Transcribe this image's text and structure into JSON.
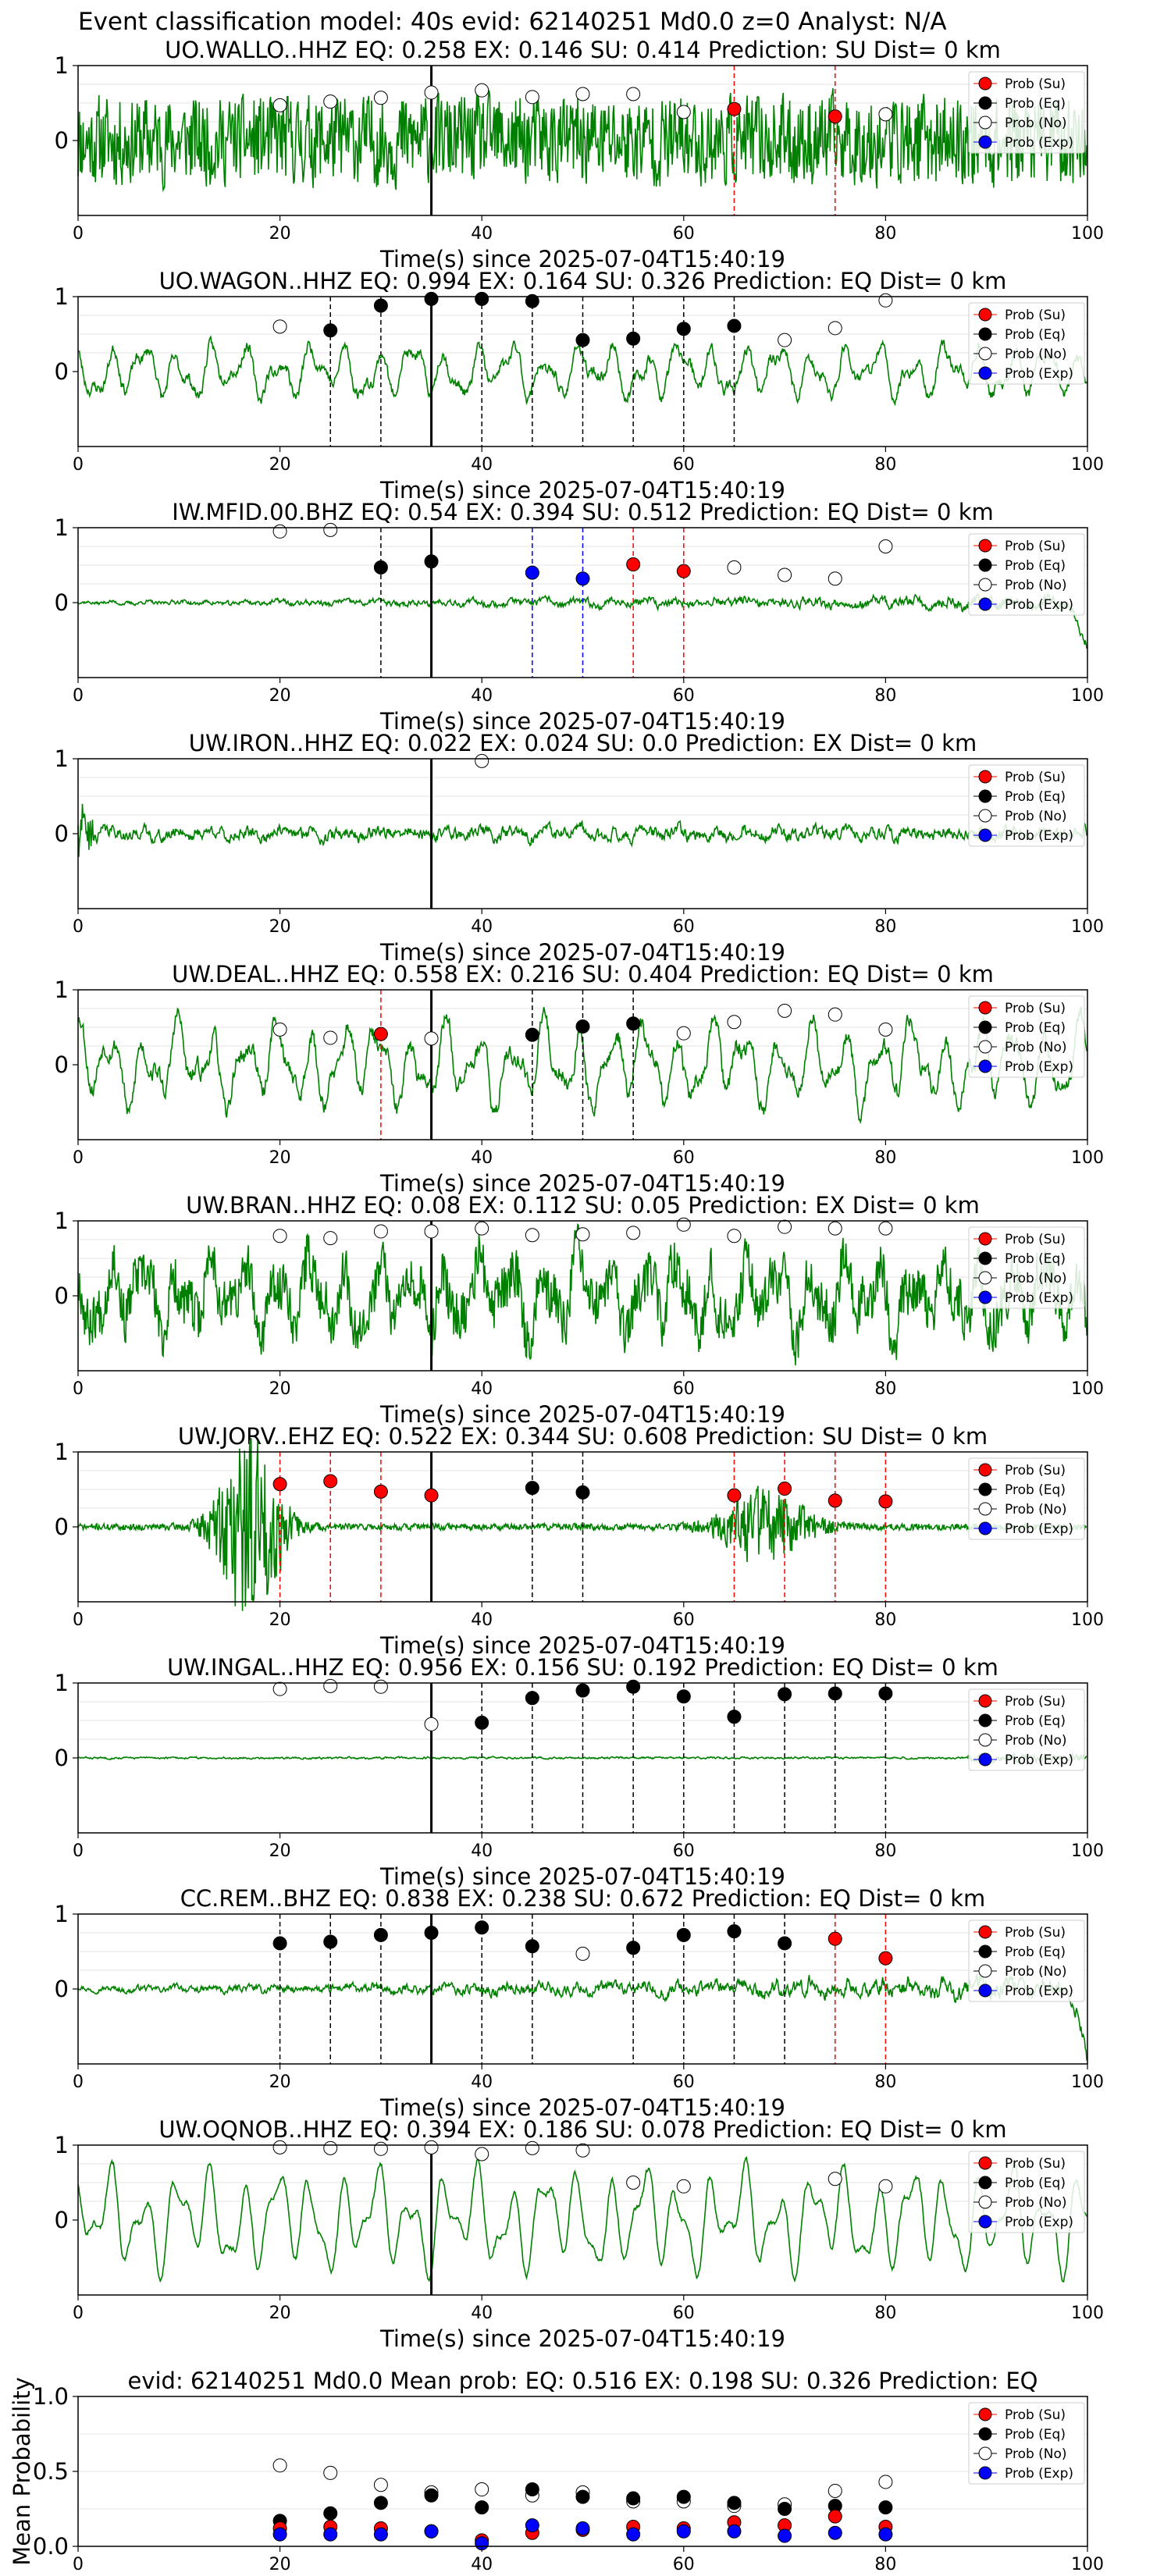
{
  "figure": {
    "title": "Event classification model: 40s evid: 62140251 Md0.0 z=0 Analyst: N/A"
  },
  "legend": {
    "position": "top-right",
    "entries": [
      {
        "key": "su",
        "label": "Prob (Su)",
        "color": "#ff0000"
      },
      {
        "key": "eq",
        "label": "Prob (Eq)",
        "color": "#000000"
      },
      {
        "key": "no",
        "label": "Prob (No)",
        "color": "#ffffff"
      },
      {
        "key": "exp",
        "label": "Prob (Exp)",
        "color": "#0000ff"
      }
    ]
  },
  "colors": {
    "waveform": "#008000",
    "su": "#ff0000",
    "eq": "#000000",
    "no": "#ffffff",
    "exp": "#0000ff",
    "origin_line": "#000000"
  },
  "chart_data": [
    {
      "type": "line",
      "station": "UO.WALLO..HHZ",
      "title": "UO.WALLO..HHZ   EQ: 0.258  EX: 0.146  SU: 0.414   Prediction: SU    Dist= 0 km",
      "xlabel": "Time(s) since 2025-07-04T15:40:19",
      "xlim": [
        0,
        100
      ],
      "ylim": [
        -1,
        1
      ],
      "xticks": [
        0,
        20,
        40,
        60,
        80,
        100
      ],
      "yticks": [
        0,
        1
      ],
      "waveform": {
        "amp": 0.6,
        "style": "noisy",
        "seed": 11
      },
      "origin_x": 35,
      "points": [
        {
          "x": 20,
          "y": 0.47,
          "cls": "no"
        },
        {
          "x": 25,
          "y": 0.52,
          "cls": "no"
        },
        {
          "x": 30,
          "y": 0.57,
          "cls": "no"
        },
        {
          "x": 35,
          "y": 0.64,
          "cls": "no"
        },
        {
          "x": 40,
          "y": 0.67,
          "cls": "no"
        },
        {
          "x": 45,
          "y": 0.58,
          "cls": "no"
        },
        {
          "x": 50,
          "y": 0.62,
          "cls": "no"
        },
        {
          "x": 55,
          "y": 0.62,
          "cls": "no"
        },
        {
          "x": 60,
          "y": 0.38,
          "cls": "no"
        },
        {
          "x": 65,
          "y": 0.42,
          "cls": "su"
        },
        {
          "x": 75,
          "y": 0.32,
          "cls": "su"
        },
        {
          "x": 80,
          "y": 0.35,
          "cls": "no"
        }
      ]
    },
    {
      "type": "line",
      "station": "UO.WAGON..HHZ",
      "title": "UO.WAGON..HHZ   EQ: 0.994  EX: 0.164  SU: 0.326   Prediction: EQ    Dist= 0 km",
      "xlabel": "Time(s) since 2025-07-04T15:40:19",
      "xlim": [
        0,
        100
      ],
      "ylim": [
        -1,
        1
      ],
      "xticks": [
        0,
        20,
        40,
        60,
        80,
        100
      ],
      "yticks": [
        0,
        1
      ],
      "waveform": {
        "amp": 0.45,
        "style": "smooth",
        "seed": 23
      },
      "origin_x": 35,
      "points": [
        {
          "x": 20,
          "y": 0.6,
          "cls": "no"
        },
        {
          "x": 25,
          "y": 0.55,
          "cls": "eq"
        },
        {
          "x": 30,
          "y": 0.88,
          "cls": "eq"
        },
        {
          "x": 35,
          "y": 0.97,
          "cls": "eq"
        },
        {
          "x": 40,
          "y": 0.97,
          "cls": "eq"
        },
        {
          "x": 45,
          "y": 0.94,
          "cls": "eq"
        },
        {
          "x": 50,
          "y": 0.42,
          "cls": "eq"
        },
        {
          "x": 55,
          "y": 0.44,
          "cls": "eq"
        },
        {
          "x": 60,
          "y": 0.57,
          "cls": "eq"
        },
        {
          "x": 65,
          "y": 0.61,
          "cls": "eq"
        },
        {
          "x": 70,
          "y": 0.42,
          "cls": "no"
        },
        {
          "x": 75,
          "y": 0.58,
          "cls": "no"
        },
        {
          "x": 80,
          "y": 0.95,
          "cls": "no"
        }
      ]
    },
    {
      "type": "line",
      "station": "IW.MFID.00.BHZ",
      "title": "IW.MFID.00.BHZ   EQ: 0.54  EX: 0.394  SU: 0.512   Prediction: EQ    Dist= 0 km",
      "xlabel": "Time(s) since 2025-07-04T15:40:19",
      "xlim": [
        0,
        100
      ],
      "ylim": [
        -1,
        1
      ],
      "xticks": [
        0,
        20,
        40,
        60,
        80,
        100
      ],
      "yticks": [
        0,
        1
      ],
      "waveform": {
        "amp": 0.12,
        "style": "growing",
        "seed": 37
      },
      "origin_x": 35,
      "points": [
        {
          "x": 20,
          "y": 0.95,
          "cls": "no"
        },
        {
          "x": 25,
          "y": 0.97,
          "cls": "no"
        },
        {
          "x": 30,
          "y": 0.47,
          "cls": "eq"
        },
        {
          "x": 35,
          "y": 0.55,
          "cls": "eq"
        },
        {
          "x": 45,
          "y": 0.4,
          "cls": "exp"
        },
        {
          "x": 50,
          "y": 0.32,
          "cls": "exp"
        },
        {
          "x": 55,
          "y": 0.51,
          "cls": "su"
        },
        {
          "x": 60,
          "y": 0.42,
          "cls": "su"
        },
        {
          "x": 65,
          "y": 0.47,
          "cls": "no"
        },
        {
          "x": 70,
          "y": 0.37,
          "cls": "no"
        },
        {
          "x": 75,
          "y": 0.32,
          "cls": "no"
        },
        {
          "x": 80,
          "y": 0.75,
          "cls": "no"
        }
      ]
    },
    {
      "type": "line",
      "station": "UW.IRON..HHZ",
      "title": "UW.IRON..HHZ   EQ: 0.022  EX: 0.024  SU: 0.0   Prediction: EX    Dist= 0 km",
      "xlabel": "Time(s) since 2025-07-04T15:40:19",
      "xlim": [
        0,
        100
      ],
      "ylim": [
        -1,
        1
      ],
      "xticks": [
        0,
        20,
        40,
        60,
        80,
        100
      ],
      "yticks": [
        0,
        1
      ],
      "waveform": {
        "amp": 0.2,
        "style": "noisy-low",
        "seed": 41
      },
      "origin_x": 35,
      "points": [
        {
          "x": 40,
          "y": 0.97,
          "cls": "no"
        }
      ]
    },
    {
      "type": "line",
      "station": "UW.DEAL..HHZ",
      "title": "UW.DEAL..HHZ   EQ: 0.558  EX: 0.216  SU: 0.404   Prediction: EQ    Dist= 0 km",
      "xlabel": "Time(s) since 2025-07-04T15:40:19",
      "xlim": [
        0,
        100
      ],
      "ylim": [
        -1,
        1
      ],
      "xticks": [
        0,
        20,
        40,
        60,
        80,
        100
      ],
      "yticks": [
        0,
        1
      ],
      "waveform": {
        "amp": 0.7,
        "style": "smooth",
        "seed": 53
      },
      "origin_x": 35,
      "points": [
        {
          "x": 20,
          "y": 0.47,
          "cls": "no"
        },
        {
          "x": 25,
          "y": 0.36,
          "cls": "no"
        },
        {
          "x": 30,
          "y": 0.41,
          "cls": "su"
        },
        {
          "x": 35,
          "y": 0.35,
          "cls": "no"
        },
        {
          "x": 45,
          "y": 0.4,
          "cls": "eq"
        },
        {
          "x": 50,
          "y": 0.51,
          "cls": "eq"
        },
        {
          "x": 55,
          "y": 0.55,
          "cls": "eq"
        },
        {
          "x": 60,
          "y": 0.42,
          "cls": "no"
        },
        {
          "x": 65,
          "y": 0.57,
          "cls": "no"
        },
        {
          "x": 70,
          "y": 0.72,
          "cls": "no"
        },
        {
          "x": 75,
          "y": 0.67,
          "cls": "no"
        },
        {
          "x": 80,
          "y": 0.47,
          "cls": "no"
        }
      ]
    },
    {
      "type": "line",
      "station": "UW.BRAN..HHZ",
      "title": "UW.BRAN..HHZ   EQ: 0.08  EX: 0.112  SU: 0.05   Prediction: EX    Dist= 0 km",
      "xlabel": "Time(s) since 2025-07-04T15:40:19",
      "xlim": [
        0,
        100
      ],
      "ylim": [
        -1,
        1
      ],
      "xticks": [
        0,
        20,
        40,
        60,
        80,
        100
      ],
      "yticks": [
        0,
        1
      ],
      "waveform": {
        "amp": 0.7,
        "style": "smooth-noisy",
        "seed": 67
      },
      "origin_x": 35,
      "points": [
        {
          "x": 20,
          "y": 0.8,
          "cls": "no"
        },
        {
          "x": 25,
          "y": 0.77,
          "cls": "no"
        },
        {
          "x": 30,
          "y": 0.86,
          "cls": "no"
        },
        {
          "x": 35,
          "y": 0.86,
          "cls": "no"
        },
        {
          "x": 40,
          "y": 0.9,
          "cls": "no"
        },
        {
          "x": 45,
          "y": 0.81,
          "cls": "no"
        },
        {
          "x": 50,
          "y": 0.82,
          "cls": "no"
        },
        {
          "x": 55,
          "y": 0.84,
          "cls": "no"
        },
        {
          "x": 60,
          "y": 0.95,
          "cls": "no"
        },
        {
          "x": 65,
          "y": 0.8,
          "cls": "no"
        },
        {
          "x": 70,
          "y": 0.92,
          "cls": "no"
        },
        {
          "x": 75,
          "y": 0.9,
          "cls": "no"
        },
        {
          "x": 80,
          "y": 0.9,
          "cls": "no"
        }
      ]
    },
    {
      "type": "line",
      "station": "UW.JORV..EHZ",
      "title": "UW.JORV..EHZ   EQ: 0.522  EX: 0.344  SU: 0.608   Prediction: SU    Dist= 0 km",
      "xlabel": "Time(s) since 2025-07-04T15:40:19",
      "xlim": [
        0,
        100
      ],
      "ylim": [
        -1,
        1
      ],
      "xticks": [
        0,
        20,
        40,
        60,
        80,
        100
      ],
      "yticks": [
        0,
        1
      ],
      "waveform": {
        "amp": 0.9,
        "style": "bursts",
        "seed": 71
      },
      "origin_x": 35,
      "points": [
        {
          "x": 20,
          "y": 0.57,
          "cls": "su"
        },
        {
          "x": 25,
          "y": 0.61,
          "cls": "su"
        },
        {
          "x": 30,
          "y": 0.47,
          "cls": "su"
        },
        {
          "x": 35,
          "y": 0.42,
          "cls": "su"
        },
        {
          "x": 45,
          "y": 0.52,
          "cls": "eq"
        },
        {
          "x": 50,
          "y": 0.46,
          "cls": "eq"
        },
        {
          "x": 65,
          "y": 0.42,
          "cls": "su"
        },
        {
          "x": 70,
          "y": 0.51,
          "cls": "su"
        },
        {
          "x": 75,
          "y": 0.35,
          "cls": "su"
        },
        {
          "x": 80,
          "y": 0.34,
          "cls": "su"
        }
      ]
    },
    {
      "type": "line",
      "station": "UW.INGAL..HHZ",
      "title": "UW.INGAL..HHZ   EQ: 0.956  EX: 0.156  SU: 0.192   Prediction: EQ    Dist= 0 km",
      "xlabel": "Time(s) since 2025-07-04T15:40:19",
      "xlim": [
        0,
        100
      ],
      "ylim": [
        -1,
        1
      ],
      "xticks": [
        0,
        20,
        40,
        60,
        80,
        100
      ],
      "yticks": [
        0,
        1
      ],
      "waveform": {
        "amp": 0.05,
        "style": "quiet-late",
        "seed": 83
      },
      "origin_x": 35,
      "points": [
        {
          "x": 20,
          "y": 0.92,
          "cls": "no"
        },
        {
          "x": 25,
          "y": 0.96,
          "cls": "no"
        },
        {
          "x": 30,
          "y": 0.95,
          "cls": "no"
        },
        {
          "x": 35,
          "y": 0.45,
          "cls": "no"
        },
        {
          "x": 40,
          "y": 0.47,
          "cls": "eq"
        },
        {
          "x": 45,
          "y": 0.8,
          "cls": "eq"
        },
        {
          "x": 50,
          "y": 0.9,
          "cls": "eq"
        },
        {
          "x": 55,
          "y": 0.95,
          "cls": "eq"
        },
        {
          "x": 60,
          "y": 0.82,
          "cls": "eq"
        },
        {
          "x": 65,
          "y": 0.55,
          "cls": "eq"
        },
        {
          "x": 70,
          "y": 0.85,
          "cls": "eq"
        },
        {
          "x": 75,
          "y": 0.86,
          "cls": "eq"
        },
        {
          "x": 80,
          "y": 0.86,
          "cls": "eq"
        }
      ]
    },
    {
      "type": "line",
      "station": "CC.REM..BHZ",
      "title": "CC.REM..BHZ   EQ: 0.838  EX: 0.238  SU: 0.672   Prediction: EQ    Dist= 0 km",
      "xlabel": "Time(s) since 2025-07-04T15:40:19",
      "xlim": [
        0,
        100
      ],
      "ylim": [
        -1,
        1
      ],
      "xticks": [
        0,
        20,
        40,
        60,
        80,
        100
      ],
      "yticks": [
        0,
        1
      ],
      "waveform": {
        "amp": 0.18,
        "style": "growing",
        "seed": 97
      },
      "origin_x": 35,
      "points": [
        {
          "x": 20,
          "y": 0.61,
          "cls": "eq"
        },
        {
          "x": 25,
          "y": 0.63,
          "cls": "eq"
        },
        {
          "x": 30,
          "y": 0.72,
          "cls": "eq"
        },
        {
          "x": 35,
          "y": 0.75,
          "cls": "eq"
        },
        {
          "x": 40,
          "y": 0.82,
          "cls": "eq"
        },
        {
          "x": 45,
          "y": 0.57,
          "cls": "eq"
        },
        {
          "x": 50,
          "y": 0.47,
          "cls": "no"
        },
        {
          "x": 55,
          "y": 0.55,
          "cls": "eq"
        },
        {
          "x": 60,
          "y": 0.72,
          "cls": "eq"
        },
        {
          "x": 65,
          "y": 0.77,
          "cls": "eq"
        },
        {
          "x": 70,
          "y": 0.61,
          "cls": "eq"
        },
        {
          "x": 75,
          "y": 0.67,
          "cls": "su"
        },
        {
          "x": 80,
          "y": 0.41,
          "cls": "su"
        }
      ]
    },
    {
      "type": "line",
      "station": "UW.OQNOB..HHZ",
      "title": "UW.OQNOB..HHZ   EQ: 0.394  EX: 0.186  SU: 0.078   Prediction: EQ    Dist= 0 km",
      "xlabel": "Time(s) since 2025-07-04T15:40:19",
      "xlim": [
        0,
        100
      ],
      "ylim": [
        -1,
        1
      ],
      "xticks": [
        0,
        20,
        40,
        60,
        80,
        100
      ],
      "yticks": [
        0,
        1
      ],
      "waveform": {
        "amp": 0.75,
        "style": "smooth-clean",
        "seed": 101
      },
      "origin_x": 35,
      "points": [
        {
          "x": 20,
          "y": 0.97,
          "cls": "no"
        },
        {
          "x": 25,
          "y": 0.96,
          "cls": "no"
        },
        {
          "x": 30,
          "y": 0.95,
          "cls": "no"
        },
        {
          "x": 35,
          "y": 0.97,
          "cls": "no"
        },
        {
          "x": 40,
          "y": 0.88,
          "cls": "no"
        },
        {
          "x": 45,
          "y": 0.96,
          "cls": "no"
        },
        {
          "x": 50,
          "y": 0.93,
          "cls": "no"
        },
        {
          "x": 55,
          "y": 0.5,
          "cls": "no"
        },
        {
          "x": 60,
          "y": 0.45,
          "cls": "no"
        },
        {
          "x": 75,
          "y": 0.55,
          "cls": "no"
        },
        {
          "x": 80,
          "y": 0.45,
          "cls": "no"
        }
      ]
    },
    {
      "type": "scatter",
      "station": "mean",
      "title": "evid: 62140251  Md0.0   Mean prob:   EQ: 0.516  EX: 0.198  SU: 0.326   Prediction: EQ",
      "xlabel": "",
      "ylabel": "Mean Probability",
      "xlim": [
        0,
        100
      ],
      "ylim": [
        0,
        1
      ],
      "xticks": [
        0,
        20,
        40,
        60,
        80,
        100
      ],
      "yticks": [
        0,
        0.5,
        1
      ],
      "ytick_labels": [
        "0.0",
        "0.5",
        "1.0"
      ],
      "x": [
        20,
        25,
        30,
        35,
        40,
        45,
        50,
        55,
        60,
        65,
        70,
        75,
        80
      ],
      "series": [
        {
          "cls": "no",
          "values": [
            0.54,
            0.49,
            0.41,
            0.36,
            0.38,
            0.34,
            0.36,
            0.3,
            0.3,
            0.27,
            0.28,
            0.37,
            0.43
          ]
        },
        {
          "cls": "eq",
          "values": [
            0.17,
            0.22,
            0.29,
            0.34,
            0.26,
            0.38,
            0.33,
            0.32,
            0.33,
            0.29,
            0.25,
            0.27,
            0.26
          ]
        },
        {
          "cls": "su",
          "values": [
            0.12,
            0.13,
            0.12,
            0.1,
            0.04,
            0.09,
            0.11,
            0.13,
            0.12,
            0.16,
            0.14,
            0.2,
            0.13
          ]
        },
        {
          "cls": "exp",
          "values": [
            0.08,
            0.08,
            0.08,
            0.1,
            0.02,
            0.14,
            0.12,
            0.08,
            0.1,
            0.1,
            0.07,
            0.09,
            0.08
          ]
        }
      ]
    }
  ]
}
